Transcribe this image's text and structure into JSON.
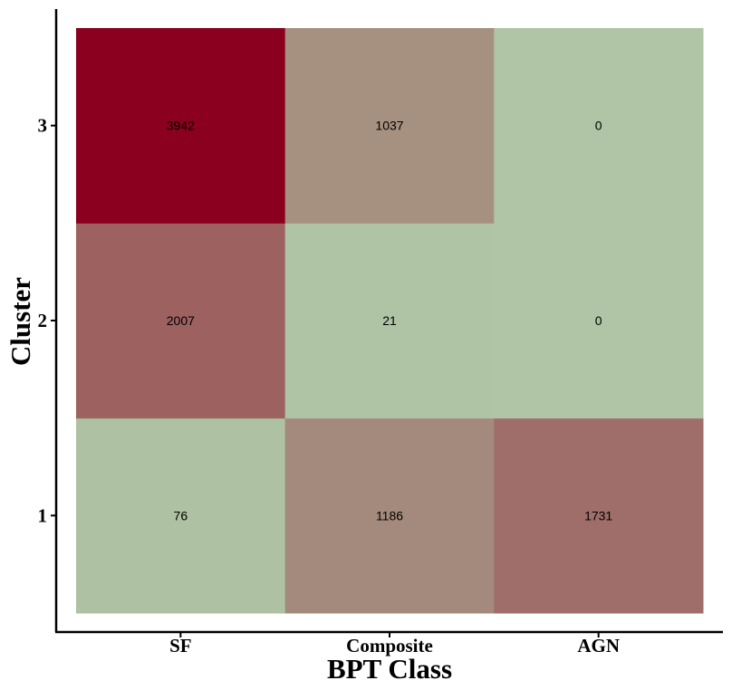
{
  "chart_data": {
    "type": "heatmap",
    "xlabel": "BPT Class",
    "ylabel": "Cluster",
    "x_categories": [
      "SF",
      "Composite",
      "AGN"
    ],
    "y_categories": [
      "1",
      "2",
      "3"
    ],
    "values": [
      [
        76,
        1186,
        1731
      ],
      [
        2007,
        21,
        0
      ],
      [
        3942,
        1037,
        0
      ]
    ],
    "colorscale": {
      "low": "#AFC5A5",
      "high": "#8B001E",
      "max_value": 3942
    },
    "grid": false,
    "legend": "none"
  }
}
